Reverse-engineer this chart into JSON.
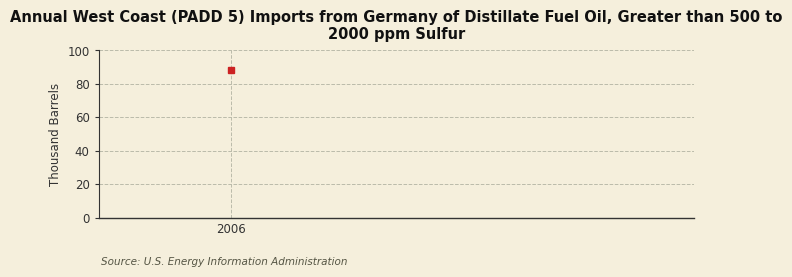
{
  "title": "Annual West Coast (PADD 5) Imports from Germany of Distillate Fuel Oil, Greater than 500 to\n2000 ppm Sulfur",
  "ylabel": "Thousand Barrels",
  "source": "Source: U.S. Energy Information Administration",
  "background_color": "#f5efdc",
  "data_x": [
    2006
  ],
  "data_y": [
    88
  ],
  "data_color": "#cc2222",
  "xlim": [
    2005.6,
    2007.4
  ],
  "ylim": [
    0,
    100
  ],
  "yticks": [
    0,
    20,
    40,
    60,
    80,
    100
  ],
  "xticks": [
    2006
  ],
  "grid_color": "#bbbbaa",
  "axis_color": "#333333",
  "title_fontsize": 10.5,
  "label_fontsize": 8.5,
  "tick_fontsize": 8.5,
  "source_fontsize": 7.5
}
